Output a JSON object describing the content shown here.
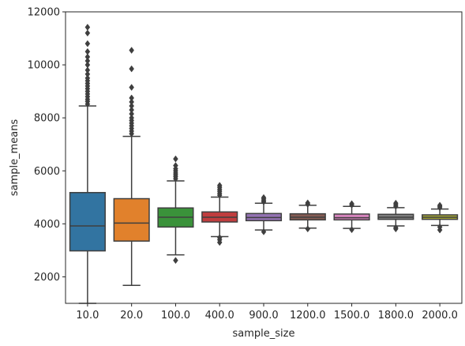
{
  "chart_data": {
    "type": "box",
    "xlabel": "sample_size",
    "ylabel": "sample_means",
    "ylim": [
      1000,
      12000
    ],
    "yticks": [
      2000,
      4000,
      6000,
      8000,
      10000,
      12000
    ],
    "grid": false,
    "legend": "none",
    "categories": [
      "10.0",
      "20.0",
      "100.0",
      "400.0",
      "900.0",
      "1200.0",
      "1500.0",
      "1800.0",
      "2000.0"
    ],
    "boxes": [
      {
        "category": "10.0",
        "color": "#3274a1",
        "q1": 2980,
        "median": 3920,
        "q3": 5180,
        "whisker_low": 1000,
        "whisker_high": 8450,
        "outliers": [
          8520,
          8620,
          8700,
          8800,
          8900,
          9000,
          9100,
          9200,
          9300,
          9400,
          9500,
          9650,
          9800,
          10000,
          10150,
          10300,
          10500,
          10800,
          11200,
          11420
        ]
      },
      {
        "category": "20.0",
        "color": "#e1812c",
        "q1": 3350,
        "median": 4030,
        "q3": 4950,
        "whisker_low": 1680,
        "whisker_high": 7300,
        "outliers": [
          7400,
          7500,
          7600,
          7700,
          7800,
          7900,
          8000,
          8150,
          8300,
          8450,
          8600,
          8750,
          9150,
          9850,
          10550
        ]
      },
      {
        "category": "100.0",
        "color": "#3a923a",
        "q1": 3880,
        "median": 4250,
        "q3": 4600,
        "whisker_low": 2830,
        "whisker_high": 5620,
        "outliers": [
          5700,
          5780,
          5850,
          5920,
          6000,
          6080,
          6200,
          6450,
          2620
        ]
      },
      {
        "category": "400.0",
        "color": "#c03d3e",
        "q1": 4070,
        "median": 4250,
        "q3": 4450,
        "whisker_low": 3520,
        "whisker_high": 5010,
        "outliers": [
          5080,
          5150,
          5230,
          5300,
          5380,
          5450,
          3480,
          3400,
          3300
        ]
      },
      {
        "category": "900.0",
        "color": "#9372b2",
        "q1": 4120,
        "median": 4240,
        "q3": 4390,
        "whisker_low": 3770,
        "whisker_high": 4780,
        "outliers": [
          4830,
          4880,
          4940,
          4990,
          3700
        ]
      },
      {
        "category": "1200.0",
        "color": "#845b53",
        "q1": 4150,
        "median": 4250,
        "q3": 4380,
        "whisker_low": 3840,
        "whisker_high": 4700,
        "outliers": [
          4740,
          4790,
          3810
        ]
      },
      {
        "category": "1500.0",
        "color": "#d684bd",
        "q1": 4150,
        "median": 4230,
        "q3": 4370,
        "whisker_low": 3830,
        "whisker_high": 4660,
        "outliers": [
          4710,
          4760,
          3780
        ]
      },
      {
        "category": "1800.0",
        "color": "#7f7f7f",
        "q1": 4170,
        "median": 4250,
        "q3": 4360,
        "whisker_low": 3920,
        "whisker_high": 4610,
        "outliers": [
          4660,
          4720,
          4780,
          3860,
          3810
        ]
      },
      {
        "category": "2000.0",
        "color": "#a9aa35",
        "q1": 4170,
        "median": 4250,
        "q3": 4340,
        "whisker_low": 3940,
        "whisker_high": 4560,
        "outliers": [
          4610,
          4660,
          4700,
          3880,
          3770
        ]
      }
    ]
  }
}
